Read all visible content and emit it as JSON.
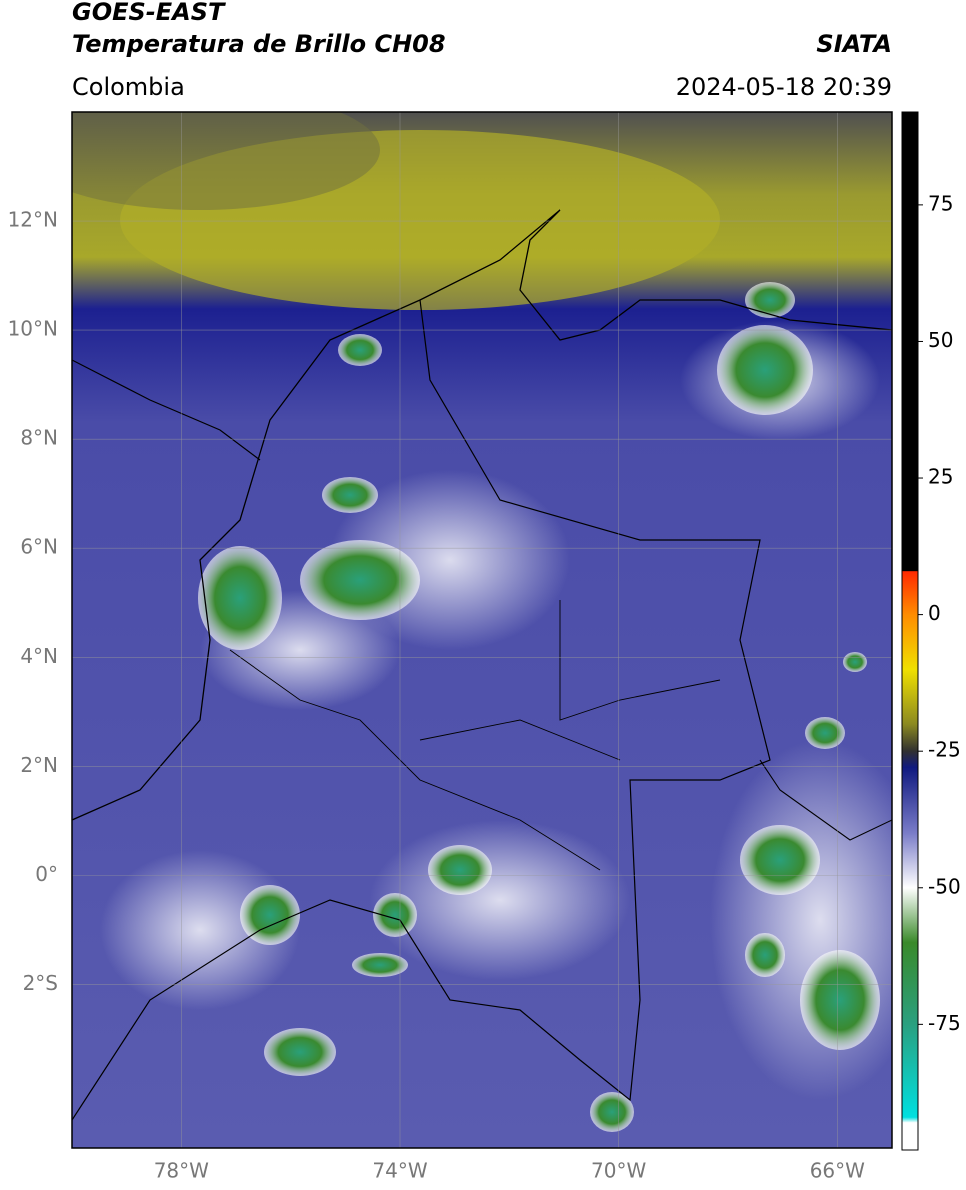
{
  "header": {
    "title_line1": "GOES-EAST",
    "title_line2": "Temperatura de Brillo CH08",
    "source": "SIATA",
    "region": "Colombia",
    "timestamp": "2024-05-18 20:39"
  },
  "map": {
    "xlim": [
      -80,
      -65
    ],
    "ylim": [
      -5,
      14
    ],
    "xticks": [
      {
        "value": -78,
        "label": "78°W"
      },
      {
        "value": -74,
        "label": "74°W"
      },
      {
        "value": -70,
        "label": "70°W"
      },
      {
        "value": -66,
        "label": "66°W"
      }
    ],
    "yticks": [
      {
        "value": 12,
        "label": "12°N"
      },
      {
        "value": 10,
        "label": "10°N"
      },
      {
        "value": 8,
        "label": "8°N"
      },
      {
        "value": 6,
        "label": "6°N"
      },
      {
        "value": 4,
        "label": "4°N"
      },
      {
        "value": 2,
        "label": "2°N"
      },
      {
        "value": 0,
        "label": "0°"
      },
      {
        "value": -2,
        "label": "2°S"
      }
    ]
  },
  "colorbar": {
    "lim": [
      -98,
      92
    ],
    "ticks": [
      75,
      50,
      25,
      0,
      -25,
      -50,
      -75
    ],
    "stops": [
      {
        "value": 92,
        "color": "#000000"
      },
      {
        "value": 8,
        "color": "#000000"
      },
      {
        "value": 7.9,
        "color": "#ff2a00"
      },
      {
        "value": 0,
        "color": "#ff8c00"
      },
      {
        "value": -10,
        "color": "#f0e000"
      },
      {
        "value": -20,
        "color": "#8c8a20"
      },
      {
        "value": -25,
        "color": "#303030"
      },
      {
        "value": -28,
        "color": "#101a80"
      },
      {
        "value": -40,
        "color": "#7a7cc8"
      },
      {
        "value": -50,
        "color": "#ffffff"
      },
      {
        "value": -60,
        "color": "#3a8a2a"
      },
      {
        "value": -75,
        "color": "#2aa080"
      },
      {
        "value": -92,
        "color": "#00e0e0"
      },
      {
        "value": -93,
        "color": "#ffffff"
      },
      {
        "value": -98,
        "color": "#ffffff"
      }
    ]
  }
}
